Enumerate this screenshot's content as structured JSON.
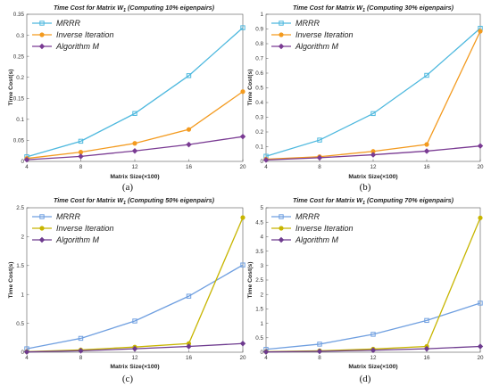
{
  "chart_data": [
    {
      "type": "line",
      "title": "Time Cost for Matrix W",
      "title_sub": "1",
      "title_suffix": " (Computing 10% eigenpairs)",
      "xlabel": "Matrix Size(×100)",
      "ylabel": "Time Cost(s)",
      "caption": "(a)",
      "x": [
        4,
        8,
        12,
        16,
        20
      ],
      "xlim": [
        4,
        20
      ],
      "xticks": [
        "4",
        "8",
        "12",
        "16",
        "20"
      ],
      "ylim": [
        0,
        0.35
      ],
      "yticks": [
        "0",
        "0.05",
        "0.1",
        "0.15",
        "0.2",
        "0.25",
        "0.3",
        "0.35"
      ],
      "legend_position": "top-left",
      "series": [
        {
          "name": "MRRR",
          "color": "#4db8de",
          "marker": "square",
          "values": [
            0.011,
            0.048,
            0.114,
            0.204,
            0.318
          ]
        },
        {
          "name": "Inverse Iteration",
          "color": "#f39a1e",
          "marker": "circle",
          "values": [
            0.007,
            0.022,
            0.043,
            0.076,
            0.166
          ]
        },
        {
          "name": "Algorithm M",
          "color": "#7a3b93",
          "marker": "diamond",
          "values": [
            0.004,
            0.012,
            0.025,
            0.04,
            0.059
          ]
        }
      ]
    },
    {
      "type": "line",
      "title": "Time Cost for Matrix W",
      "title_sub": "1",
      "title_suffix": " (Computing 30% eigenpairs)",
      "xlabel": "Matrix Size(×100)",
      "ylabel": "Time Cost(s)",
      "caption": "(b)",
      "x": [
        4,
        8,
        12,
        16,
        20
      ],
      "xlim": [
        4,
        20
      ],
      "xticks": [
        "4",
        "8",
        "12",
        "16",
        "20"
      ],
      "ylim": [
        0,
        1
      ],
      "yticks": [
        "0",
        "0.1",
        "0.2",
        "0.3",
        "0.4",
        "0.5",
        "0.6",
        "0.7",
        "0.8",
        "0.9",
        "1"
      ],
      "legend_position": "top-left",
      "series": [
        {
          "name": "MRRR",
          "color": "#4db8de",
          "marker": "square",
          "values": [
            0.035,
            0.145,
            0.325,
            0.585,
            0.905
          ]
        },
        {
          "name": "Inverse Iteration",
          "color": "#f39a1e",
          "marker": "circle",
          "values": [
            0.015,
            0.032,
            0.068,
            0.115,
            0.885
          ]
        },
        {
          "name": "Algorithm M",
          "color": "#7a3b93",
          "marker": "diamond",
          "values": [
            0.01,
            0.025,
            0.045,
            0.07,
            0.105
          ]
        }
      ]
    },
    {
      "type": "line",
      "title": "Time Cost for Matrix W",
      "title_sub": "1",
      "title_suffix": " (Computing 50% eigenpairs)",
      "xlabel": "Matrix Size(×100)",
      "ylabel": "Time Cost(s)",
      "caption": "(c)",
      "x": [
        4,
        8,
        12,
        16,
        20
      ],
      "xlim": [
        4,
        20
      ],
      "xticks": [
        "4",
        "8",
        "12",
        "16",
        "20"
      ],
      "ylim": [
        0,
        2.5
      ],
      "yticks": [
        "0",
        "0.5",
        "1",
        "1.5",
        "2",
        "2.5"
      ],
      "legend_position": "top-left",
      "series": [
        {
          "name": "MRRR",
          "color": "#6f9fe0",
          "marker": "square",
          "values": [
            0.06,
            0.24,
            0.54,
            0.97,
            1.51
          ]
        },
        {
          "name": "Inverse Iteration",
          "color": "#c7b500",
          "marker": "circle",
          "values": [
            0.01,
            0.04,
            0.09,
            0.15,
            2.33
          ]
        },
        {
          "name": "Algorithm M",
          "color": "#6d3a8e",
          "marker": "diamond",
          "values": [
            0.005,
            0.025,
            0.06,
            0.1,
            0.15
          ]
        }
      ]
    },
    {
      "type": "line",
      "title": "Time Cost for Matrix W",
      "title_sub": "1",
      "title_suffix": " (Computing 70% eigenpairs)",
      "xlabel": "Matrix Size(×100)",
      "ylabel": "Time Cost(s)",
      "caption": "(d)",
      "x": [
        4,
        8,
        12,
        16,
        20
      ],
      "xlim": [
        4,
        20
      ],
      "xticks": [
        "4",
        "8",
        "12",
        "16",
        "20"
      ],
      "ylim": [
        0,
        5
      ],
      "yticks": [
        "0",
        "0.5",
        "1",
        "1.5",
        "2",
        "2.5",
        "3",
        "3.5",
        "4",
        "4.5",
        "5"
      ],
      "legend_position": "top-left",
      "series": [
        {
          "name": "MRRR",
          "color": "#6f9fe0",
          "marker": "square",
          "values": [
            0.1,
            0.28,
            0.62,
            1.1,
            1.7
          ]
        },
        {
          "name": "Inverse Iteration",
          "color": "#c7b500",
          "marker": "circle",
          "values": [
            0.02,
            0.05,
            0.11,
            0.2,
            4.65
          ]
        },
        {
          "name": "Algorithm M",
          "color": "#6d3a8e",
          "marker": "diamond",
          "values": [
            0.01,
            0.03,
            0.07,
            0.12,
            0.2
          ]
        }
      ]
    }
  ]
}
